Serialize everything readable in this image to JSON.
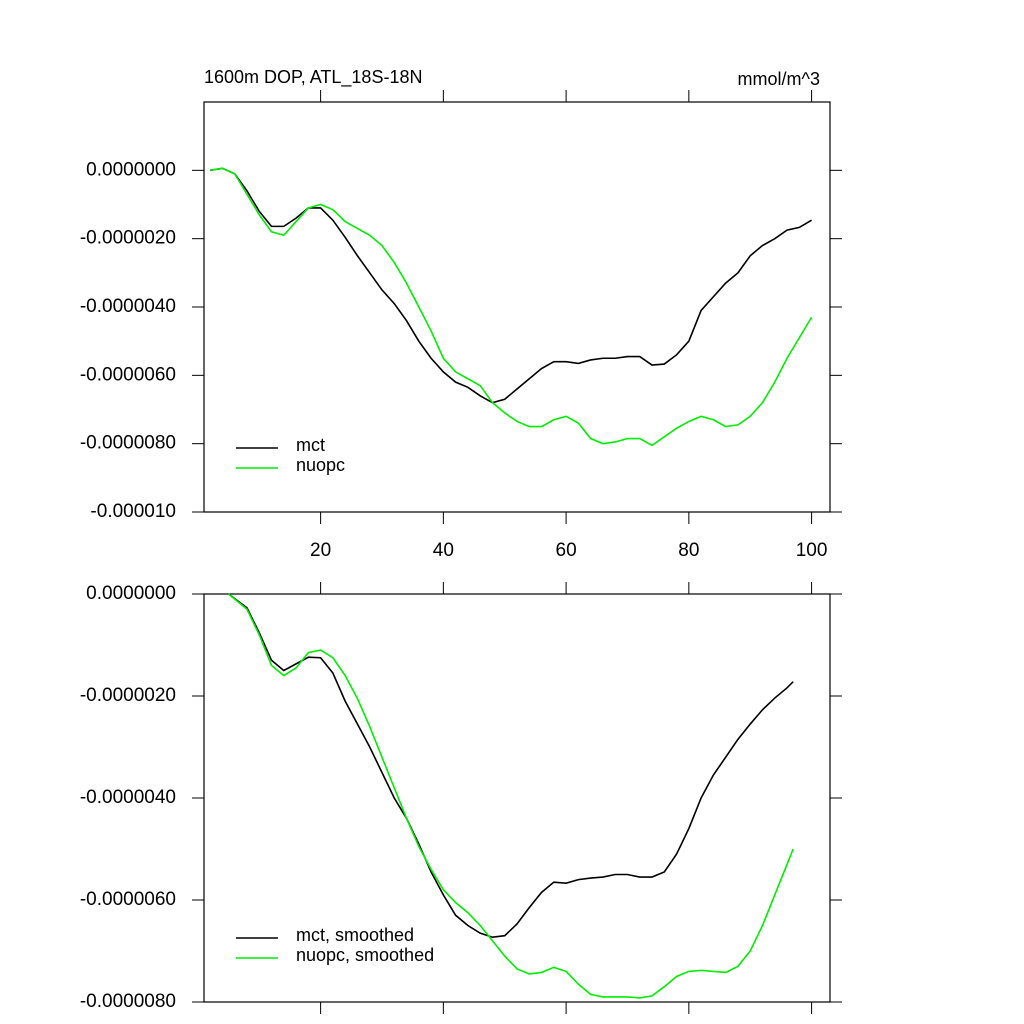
{
  "chart_data": [
    {
      "type": "line",
      "title": "1600m DOP, ATL_18S-18N",
      "units": "mmol/m^3",
      "x": [
        2,
        4,
        6,
        8,
        10,
        12,
        14,
        16,
        18,
        20,
        22,
        24,
        26,
        28,
        30,
        32,
        34,
        36,
        38,
        40,
        42,
        44,
        46,
        48,
        50,
        52,
        54,
        56,
        58,
        60,
        62,
        64,
        66,
        68,
        70,
        72,
        74,
        76,
        78,
        80,
        82,
        84,
        86,
        88,
        90,
        92,
        94,
        96,
        98,
        100
      ],
      "series": [
        {
          "name": "mct",
          "color": "#000000",
          "values": [
            0,
            6e-08,
            -1e-07,
            -6e-07,
            -1.2e-06,
            -1.64e-06,
            -1.64e-06,
            -1.4e-06,
            -1.1e-06,
            -1.1e-06,
            -1.46e-06,
            -1.96e-06,
            -2.5e-06,
            -3e-06,
            -3.5e-06,
            -3.9e-06,
            -4.4e-06,
            -5e-06,
            -5.5e-06,
            -5.9e-06,
            -6.2e-06,
            -6.35e-06,
            -6.6e-06,
            -6.8e-06,
            -6.7e-06,
            -6.4e-06,
            -6.1e-06,
            -5.8e-06,
            -5.6e-06,
            -5.6e-06,
            -5.65e-06,
            -5.55e-06,
            -5.5e-06,
            -5.5e-06,
            -5.45e-06,
            -5.45e-06,
            -5.7e-06,
            -5.67e-06,
            -5.4e-06,
            -5e-06,
            -4.1e-06,
            -3.7e-06,
            -3.3e-06,
            -3e-06,
            -2.5e-06,
            -2.2e-06,
            -2e-06,
            -1.75e-06,
            -1.67e-06,
            -1.46e-06
          ]
        },
        {
          "name": "nuopc",
          "color": "#00ee00",
          "values": [
            0,
            6e-08,
            -1e-07,
            -7e-07,
            -1.3e-06,
            -1.8e-06,
            -1.9e-06,
            -1.5e-06,
            -1.1e-06,
            -1e-06,
            -1.15e-06,
            -1.5e-06,
            -1.7e-06,
            -1.9e-06,
            -2.2e-06,
            -2.7e-06,
            -3.3e-06,
            -4e-06,
            -4.7e-06,
            -5.5e-06,
            -5.9e-06,
            -6.1e-06,
            -6.3e-06,
            -6.8e-06,
            -7.1e-06,
            -7.35e-06,
            -7.5e-06,
            -7.5e-06,
            -7.3e-06,
            -7.2e-06,
            -7.4e-06,
            -7.85e-06,
            -8e-06,
            -7.95e-06,
            -7.85e-06,
            -7.85e-06,
            -8.05e-06,
            -7.8e-06,
            -7.55e-06,
            -7.35e-06,
            -7.2e-06,
            -7.3e-06,
            -7.5e-06,
            -7.45e-06,
            -7.2e-06,
            -6.8e-06,
            -6.2e-06,
            -5.5e-06,
            -4.9e-06,
            -4.3e-06
          ]
        }
      ],
      "xlim": [
        1,
        103
      ],
      "xticks": [
        20,
        40,
        60,
        80,
        100
      ],
      "ylim": [
        -1e-05,
        2e-06
      ],
      "yticks": [
        {
          "value": 0,
          "label": "0.0000000"
        },
        {
          "value": -2e-06,
          "label": "-0.0000020"
        },
        {
          "value": -4e-06,
          "label": "-0.0000040"
        },
        {
          "value": -6e-06,
          "label": "-0.0000060"
        },
        {
          "value": -8e-06,
          "label": "-0.0000080"
        },
        {
          "value": -1e-05,
          "label": "-0.000010"
        }
      ],
      "legend": "lower left"
    },
    {
      "type": "line",
      "x": [
        5,
        8,
        10,
        12,
        14,
        16,
        18,
        20,
        22,
        24,
        26,
        28,
        30,
        32,
        34,
        36,
        38,
        40,
        42,
        44,
        46,
        48,
        50,
        52,
        54,
        56,
        58,
        60,
        62,
        64,
        66,
        68,
        70,
        72,
        74,
        76,
        78,
        80,
        82,
        84,
        86,
        88,
        90,
        92,
        94,
        96,
        97
      ],
      "series": [
        {
          "name": "mct, smoothed",
          "color": "#000000",
          "values": [
            0,
            -2.7e-07,
            -7.6e-07,
            -1.3e-06,
            -1.5e-06,
            -1.37e-06,
            -1.24e-06,
            -1.25e-06,
            -1.55e-06,
            -2.1e-06,
            -2.55e-06,
            -3e-06,
            -3.5e-06,
            -4e-06,
            -4.4e-06,
            -4.9e-06,
            -5.45e-06,
            -5.9e-06,
            -6.3e-06,
            -6.5e-06,
            -6.65e-06,
            -6.73e-06,
            -6.7e-06,
            -6.47e-06,
            -6.15e-06,
            -5.85e-06,
            -5.65e-06,
            -5.67e-06,
            -5.6e-06,
            -5.57e-06,
            -5.55e-06,
            -5.5e-06,
            -5.5e-06,
            -5.55e-06,
            -5.55e-06,
            -5.45e-06,
            -5.1e-06,
            -4.6e-06,
            -4e-06,
            -3.55e-06,
            -3.2e-06,
            -2.85e-06,
            -2.55e-06,
            -2.27e-06,
            -2.04e-06,
            -1.84e-06,
            -1.72e-06
          ]
        },
        {
          "name": "nuopc, smoothed",
          "color": "#00ee00",
          "values": [
            0,
            -3e-07,
            -8e-07,
            -1.4e-06,
            -1.6e-06,
            -1.45e-06,
            -1.15e-06,
            -1.1e-06,
            -1.25e-06,
            -1.6e-06,
            -2.05e-06,
            -2.6e-06,
            -3.2e-06,
            -3.8e-06,
            -4.4e-06,
            -4.95e-06,
            -5.4e-06,
            -5.8e-06,
            -6.05e-06,
            -6.25e-06,
            -6.5e-06,
            -6.8e-06,
            -7.1e-06,
            -7.35e-06,
            -7.45e-06,
            -7.42e-06,
            -7.32e-06,
            -7.4e-06,
            -7.65e-06,
            -7.85e-06,
            -7.9e-06,
            -7.9e-06,
            -7.9e-06,
            -7.92e-06,
            -7.88e-06,
            -7.7e-06,
            -7.5e-06,
            -7.4e-06,
            -7.38e-06,
            -7.4e-06,
            -7.42e-06,
            -7.3e-06,
            -7e-06,
            -6.5e-06,
            -5.9e-06,
            -5.3e-06,
            -5e-06
          ]
        }
      ],
      "xlim": [
        1,
        103
      ],
      "xticks": [
        20,
        40,
        60,
        80,
        100
      ],
      "ylim": [
        -8e-06,
        0
      ],
      "yticks": [
        {
          "value": 0,
          "label": "0.0000000"
        },
        {
          "value": -2e-06,
          "label": "-0.0000020"
        },
        {
          "value": -4e-06,
          "label": "-0.0000040"
        },
        {
          "value": -6e-06,
          "label": "-0.0000060"
        },
        {
          "value": -8e-06,
          "label": "-0.0000080"
        }
      ],
      "legend": "lower left"
    }
  ]
}
